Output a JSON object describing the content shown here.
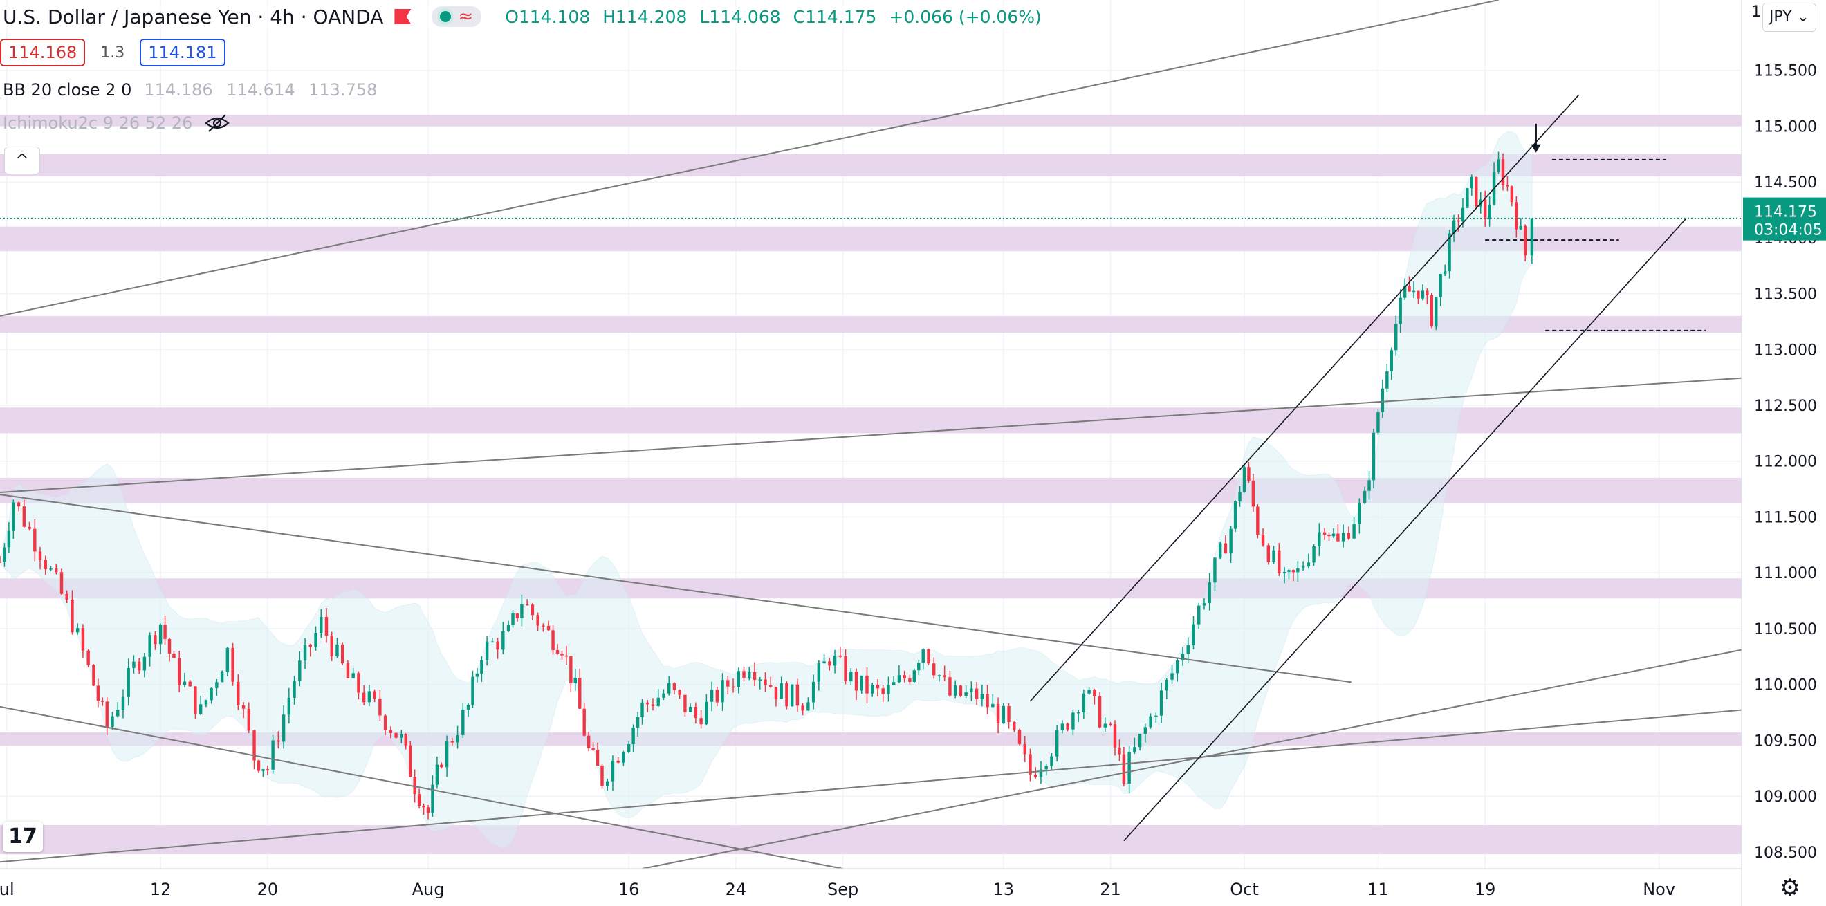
{
  "legend": {
    "symbol": "U.S. Dollar / Japanese Yen",
    "interval": "4h",
    "exchange": "OANDA",
    "ohlc": {
      "open": "O114.108",
      "high": "H114.208",
      "low": "L114.068",
      "close": "C114.175",
      "change": "+0.066 (+0.06%)"
    },
    "sell_price": "114.168",
    "spread": "1.3",
    "buy_price": "114.181"
  },
  "indicators": [
    {
      "name": "BB 20 close 2 0",
      "values": [
        "114.186",
        "114.614",
        "113.758"
      ]
    },
    {
      "name": "Ichimoku2c 9 26 52 26",
      "hidden": true
    }
  ],
  "toolbar": {
    "collapse_label": "^",
    "logo_label": "17",
    "currency": "JPY",
    "currency_chevron": "⌄",
    "settings_icon": "gear-icon"
  },
  "colors": {
    "up": "#089981",
    "down": "#f23645",
    "zone": "#e4cfe9",
    "trendline": "#7a7a7a",
    "channel": "#131722",
    "price_label_bg": "#089981",
    "last_price_line": "#089981",
    "cloud": "#ddf1f5"
  },
  "price_label": {
    "value": "114.175",
    "countdown": "03:04:05"
  },
  "top_edge_tick": "1",
  "chart_data": {
    "type": "candlestick",
    "symbol": "USDJPY",
    "interval": "4h",
    "x_ticks": [
      {
        "label": "ul",
        "t": 0.5
      },
      {
        "label": "12",
        "t": 12
      },
      {
        "label": "20",
        "t": 20
      },
      {
        "label": "Aug",
        "t": 32
      },
      {
        "label": "16",
        "t": 47
      },
      {
        "label": "24",
        "t": 55
      },
      {
        "label": "Sep",
        "t": 63
      },
      {
        "label": "13",
        "t": 75
      },
      {
        "label": "21",
        "t": 83
      },
      {
        "label": "Oct",
        "t": 93
      },
      {
        "label": "11",
        "t": 103
      },
      {
        "label": "19",
        "t": 111
      },
      {
        "label": "Nov",
        "t": 124
      }
    ],
    "t_range": [
      0,
      130
    ],
    "y_ticks": [
      "115.500",
      "115.000",
      "114.500",
      "114.000",
      "113.500",
      "113.000",
      "112.500",
      "112.000",
      "111.500",
      "111.000",
      "110.500",
      "110.000",
      "109.500",
      "109.000",
      "108.500"
    ],
    "ylim": [
      108.35,
      116.13
    ],
    "last_price": 114.175,
    "key_points": [
      [
        0,
        111.1
      ],
      [
        1,
        111.65
      ],
      [
        3,
        111.2
      ],
      [
        5,
        110.7
      ],
      [
        7,
        110.0
      ],
      [
        8,
        109.62
      ],
      [
        10,
        110.15
      ],
      [
        12,
        110.55
      ],
      [
        13,
        110.15
      ],
      [
        15,
        109.75
      ],
      [
        17,
        110.3
      ],
      [
        19,
        109.35
      ],
      [
        20,
        109.25
      ],
      [
        22,
        110.05
      ],
      [
        24,
        110.55
      ],
      [
        26,
        110.05
      ],
      [
        28,
        109.8
      ],
      [
        30,
        109.5
      ],
      [
        31,
        109.1
      ],
      [
        32,
        108.85
      ],
      [
        33,
        109.35
      ],
      [
        35,
        109.8
      ],
      [
        36,
        110.3
      ],
      [
        38,
        110.45
      ],
      [
        39,
        110.75
      ],
      [
        41,
        110.45
      ],
      [
        42,
        110.35
      ],
      [
        43,
        109.95
      ],
      [
        44,
        109.4
      ],
      [
        45,
        109.15
      ],
      [
        47,
        109.55
      ],
      [
        48,
        109.8
      ],
      [
        50,
        109.95
      ],
      [
        52,
        109.7
      ],
      [
        54,
        109.95
      ],
      [
        56,
        110.2
      ],
      [
        58,
        109.95
      ],
      [
        60,
        109.85
      ],
      [
        62,
        110.25
      ],
      [
        64,
        110.0
      ],
      [
        66,
        109.9
      ],
      [
        68,
        110.1
      ],
      [
        69,
        110.35
      ],
      [
        71,
        109.9
      ],
      [
        73,
        109.9
      ],
      [
        75,
        109.7
      ],
      [
        77,
        109.2
      ],
      [
        79,
        109.5
      ],
      [
        81,
        109.95
      ],
      [
        83,
        109.55
      ],
      [
        84,
        109.2
      ],
      [
        86,
        109.7
      ],
      [
        88,
        110.2
      ],
      [
        90,
        110.8
      ],
      [
        92,
        111.4
      ],
      [
        93,
        111.95
      ],
      [
        94,
        111.4
      ],
      [
        96,
        110.9
      ],
      [
        97,
        111.0
      ],
      [
        99,
        111.45
      ],
      [
        100,
        111.25
      ],
      [
        102,
        111.65
      ],
      [
        103,
        112.45
      ],
      [
        104,
        113.1
      ],
      [
        105,
        113.5
      ],
      [
        106,
        113.55
      ],
      [
        107,
        113.3
      ],
      [
        108,
        113.8
      ],
      [
        109,
        114.2
      ],
      [
        110,
        114.45
      ],
      [
        111,
        114.2
      ],
      [
        112,
        114.65
      ],
      [
        113,
        114.35
      ],
      [
        114,
        113.85
      ],
      [
        114.5,
        114.1
      ]
    ],
    "support_resistance_zones": [
      [
        115.0,
        115.1
      ],
      [
        114.55,
        114.75
      ],
      [
        113.88,
        114.1
      ],
      [
        113.15,
        113.3
      ],
      [
        112.25,
        112.48
      ],
      [
        111.62,
        111.85
      ],
      [
        110.77,
        110.95
      ],
      [
        109.45,
        109.57
      ],
      [
        108.48,
        108.74
      ]
    ],
    "channel_lines": [
      {
        "from": [
          77,
          109.85
        ],
        "to": [
          118,
          115.28
        ]
      },
      {
        "from": [
          84,
          108.6
        ],
        "to": [
          126,
          114.17
        ]
      }
    ],
    "trend_lines": [
      {
        "from": [
          0,
          113.3
        ],
        "to": [
          112,
          116.13
        ]
      },
      {
        "from": [
          0,
          111.72
        ],
        "to": [
          131,
          112.75
        ]
      },
      {
        "from": [
          0,
          111.7
        ],
        "to": [
          101,
          110.02
        ]
      },
      {
        "from": [
          0,
          109.8
        ],
        "to": [
          63,
          108.35
        ]
      },
      {
        "from": [
          0,
          108.41
        ],
        "to": [
          131,
          109.78
        ]
      },
      {
        "from": [
          48,
          108.35
        ],
        "to": [
          131,
          110.33
        ]
      }
    ],
    "dashed_levels": [
      {
        "t1": 116,
        "t2": 124.5,
        "y": 114.7
      },
      {
        "t1": 111,
        "t2": 121,
        "y": 113.98
      },
      {
        "t1": 115.5,
        "t2": 127.5,
        "y": 113.17
      }
    ],
    "arrow_marker": {
      "t": 114.8,
      "y": 114.75
    }
  }
}
